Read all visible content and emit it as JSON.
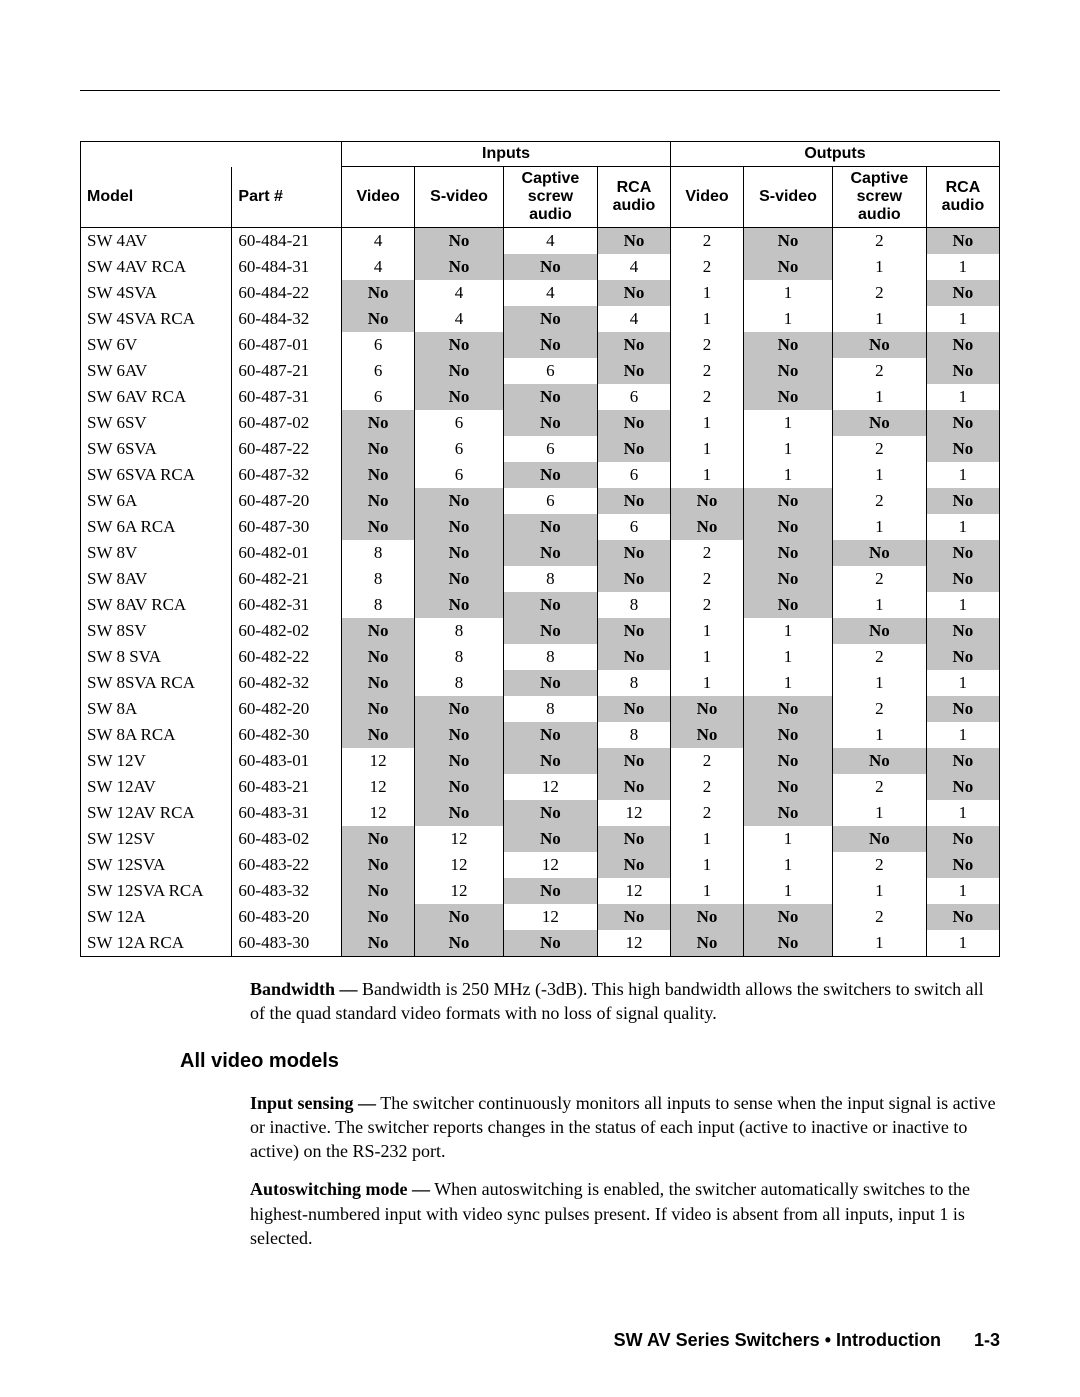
{
  "table": {
    "group_headers": {
      "inputs": "Inputs",
      "outputs": "Outputs"
    },
    "columns": {
      "model": "Model",
      "part": "Part #",
      "video": "Video",
      "svideo": "S-video",
      "captive": "Captive\nscrew\naudio",
      "rca": "RCA\naudio"
    },
    "shaded_color": "#c3c3c3",
    "border_color": "#000000",
    "font_size_pt": 12,
    "rows": [
      {
        "model": "SW 4AV",
        "part": "60-484-21",
        "in_v": "4",
        "in_sv": "No",
        "in_cs": "4",
        "in_rca": "No",
        "out_v": "2",
        "out_sv": "No",
        "out_cs": "2",
        "out_rca": "No"
      },
      {
        "model": "SW 4AV RCA",
        "part": "60-484-31",
        "in_v": "4",
        "in_sv": "No",
        "in_cs": "No",
        "in_rca": "4",
        "out_v": "2",
        "out_sv": "No",
        "out_cs": "1",
        "out_rca": "1"
      },
      {
        "model": "SW 4SVA",
        "part": "60-484-22",
        "in_v": "No",
        "in_sv": "4",
        "in_cs": "4",
        "in_rca": "No",
        "out_v": "1",
        "out_sv": "1",
        "out_cs": "2",
        "out_rca": "No"
      },
      {
        "model": "SW 4SVA RCA",
        "part": "60-484-32",
        "in_v": "No",
        "in_sv": "4",
        "in_cs": "No",
        "in_rca": "4",
        "out_v": "1",
        "out_sv": "1",
        "out_cs": "1",
        "out_rca": "1"
      },
      {
        "model": "SW 6V",
        "part": "60-487-01",
        "in_v": "6",
        "in_sv": "No",
        "in_cs": "No",
        "in_rca": "No",
        "out_v": "2",
        "out_sv": "No",
        "out_cs": "No",
        "out_rca": "No"
      },
      {
        "model": "SW 6AV",
        "part": "60-487-21",
        "in_v": "6",
        "in_sv": "No",
        "in_cs": "6",
        "in_rca": "No",
        "out_v": "2",
        "out_sv": "No",
        "out_cs": "2",
        "out_rca": "No"
      },
      {
        "model": "SW 6AV RCA",
        "part": "60-487-31",
        "in_v": "6",
        "in_sv": "No",
        "in_cs": "No",
        "in_rca": "6",
        "out_v": "2",
        "out_sv": "No",
        "out_cs": "1",
        "out_rca": "1"
      },
      {
        "model": "SW 6SV",
        "part": "60-487-02",
        "in_v": "No",
        "in_sv": "6",
        "in_cs": "No",
        "in_rca": "No",
        "out_v": "1",
        "out_sv": "1",
        "out_cs": "No",
        "out_rca": "No"
      },
      {
        "model": "SW 6SVA",
        "part": "60-487-22",
        "in_v": "No",
        "in_sv": "6",
        "in_cs": "6",
        "in_rca": "No",
        "out_v": "1",
        "out_sv": "1",
        "out_cs": "2",
        "out_rca": "No"
      },
      {
        "model": "SW 6SVA RCA",
        "part": "60-487-32",
        "in_v": "No",
        "in_sv": "6",
        "in_cs": "No",
        "in_rca": "6",
        "out_v": "1",
        "out_sv": "1",
        "out_cs": "1",
        "out_rca": "1"
      },
      {
        "model": "SW 6A",
        "part": "60-487-20",
        "in_v": "No",
        "in_sv": "No",
        "in_cs": "6",
        "in_rca": "No",
        "out_v": "No",
        "out_sv": "No",
        "out_cs": "2",
        "out_rca": "No"
      },
      {
        "model": "SW 6A RCA",
        "part": "60-487-30",
        "in_v": "No",
        "in_sv": "No",
        "in_cs": "No",
        "in_rca": "6",
        "out_v": "No",
        "out_sv": "No",
        "out_cs": "1",
        "out_rca": "1"
      },
      {
        "model": "SW 8V",
        "part": "60-482-01",
        "in_v": "8",
        "in_sv": "No",
        "in_cs": "No",
        "in_rca": "No",
        "out_v": "2",
        "out_sv": "No",
        "out_cs": "No",
        "out_rca": "No"
      },
      {
        "model": "SW 8AV",
        "part": "60-482-21",
        "in_v": "8",
        "in_sv": "No",
        "in_cs": "8",
        "in_rca": "No",
        "out_v": "2",
        "out_sv": "No",
        "out_cs": "2",
        "out_rca": "No"
      },
      {
        "model": "SW 8AV RCA",
        "part": "60-482-31",
        "in_v": "8",
        "in_sv": "No",
        "in_cs": "No",
        "in_rca": "8",
        "out_v": "2",
        "out_sv": "No",
        "out_cs": "1",
        "out_rca": "1"
      },
      {
        "model": "SW 8SV",
        "part": "60-482-02",
        "in_v": "No",
        "in_sv": "8",
        "in_cs": "No",
        "in_rca": "No",
        "out_v": "1",
        "out_sv": "1",
        "out_cs": "No",
        "out_rca": "No"
      },
      {
        "model": "SW 8 SVA",
        "part": "60-482-22",
        "in_v": "No",
        "in_sv": "8",
        "in_cs": "8",
        "in_rca": "No",
        "out_v": "1",
        "out_sv": "1",
        "out_cs": "2",
        "out_rca": "No"
      },
      {
        "model": "SW 8SVA RCA",
        "part": "60-482-32",
        "in_v": "No",
        "in_sv": "8",
        "in_cs": "No",
        "in_rca": "8",
        "out_v": "1",
        "out_sv": "1",
        "out_cs": "1",
        "out_rca": "1"
      },
      {
        "model": "SW 8A",
        "part": "60-482-20",
        "in_v": "No",
        "in_sv": "No",
        "in_cs": "8",
        "in_rca": "No",
        "out_v": "No",
        "out_sv": "No",
        "out_cs": "2",
        "out_rca": "No"
      },
      {
        "model": "SW 8A RCA",
        "part": "60-482-30",
        "in_v": "No",
        "in_sv": "No",
        "in_cs": "No",
        "in_rca": "8",
        "out_v": "No",
        "out_sv": "No",
        "out_cs": "1",
        "out_rca": "1"
      },
      {
        "model": "SW 12V",
        "part": "60-483-01",
        "in_v": "12",
        "in_sv": "No",
        "in_cs": "No",
        "in_rca": "No",
        "out_v": "2",
        "out_sv": "No",
        "out_cs": "No",
        "out_rca": "No"
      },
      {
        "model": "SW 12AV",
        "part": "60-483-21",
        "in_v": "12",
        "in_sv": "No",
        "in_cs": "12",
        "in_rca": "No",
        "out_v": "2",
        "out_sv": "No",
        "out_cs": "2",
        "out_rca": "No"
      },
      {
        "model": "SW 12AV RCA",
        "part": "60-483-31",
        "in_v": "12",
        "in_sv": "No",
        "in_cs": "No",
        "in_rca": "12",
        "out_v": "2",
        "out_sv": "No",
        "out_cs": "1",
        "out_rca": "1"
      },
      {
        "model": "SW 12SV",
        "part": "60-483-02",
        "in_v": "No",
        "in_sv": "12",
        "in_cs": "No",
        "in_rca": "No",
        "out_v": "1",
        "out_sv": "1",
        "out_cs": "No",
        "out_rca": "No"
      },
      {
        "model": "SW 12SVA",
        "part": "60-483-22",
        "in_v": "No",
        "in_sv": "12",
        "in_cs": "12",
        "in_rca": "No",
        "out_v": "1",
        "out_sv": "1",
        "out_cs": "2",
        "out_rca": "No"
      },
      {
        "model": "SW 12SVA RCA",
        "part": "60-483-32",
        "in_v": "No",
        "in_sv": "12",
        "in_cs": "No",
        "in_rca": "12",
        "out_v": "1",
        "out_sv": "1",
        "out_cs": "1",
        "out_rca": "1"
      },
      {
        "model": "SW 12A",
        "part": "60-483-20",
        "in_v": "No",
        "in_sv": "No",
        "in_cs": "12",
        "in_rca": "No",
        "out_v": "No",
        "out_sv": "No",
        "out_cs": "2",
        "out_rca": "No"
      },
      {
        "model": "SW 12A RCA",
        "part": "60-483-30",
        "in_v": "No",
        "in_sv": "No",
        "in_cs": "No",
        "in_rca": "12",
        "out_v": "No",
        "out_sv": "No",
        "out_cs": "1",
        "out_rca": "1"
      }
    ]
  },
  "paragraphs": {
    "bandwidth_lead": "Bandwidth —",
    "bandwidth_body": " Bandwidth is 250 MHz (-3dB).  This high bandwidth allows the switchers to switch all of the quad standard video formats with no loss of signal quality.",
    "section_heading": "All video models",
    "sensing_lead": "Input sensing —",
    "sensing_body": " The switcher continuously monitors all inputs to sense when the input signal is active or inactive.  The switcher reports changes in the status of each input (active to inactive or inactive to active) on the RS-232 port.",
    "autosw_lead": "Autoswitching mode —",
    "autosw_body": " When autoswitching is enabled, the switcher automatically switches to the highest-numbered input with video sync pulses present.  If video is absent from all inputs, input 1 is selected."
  },
  "footer": {
    "title": "SW AV Series Switchers • Introduction",
    "page": "1-3"
  }
}
